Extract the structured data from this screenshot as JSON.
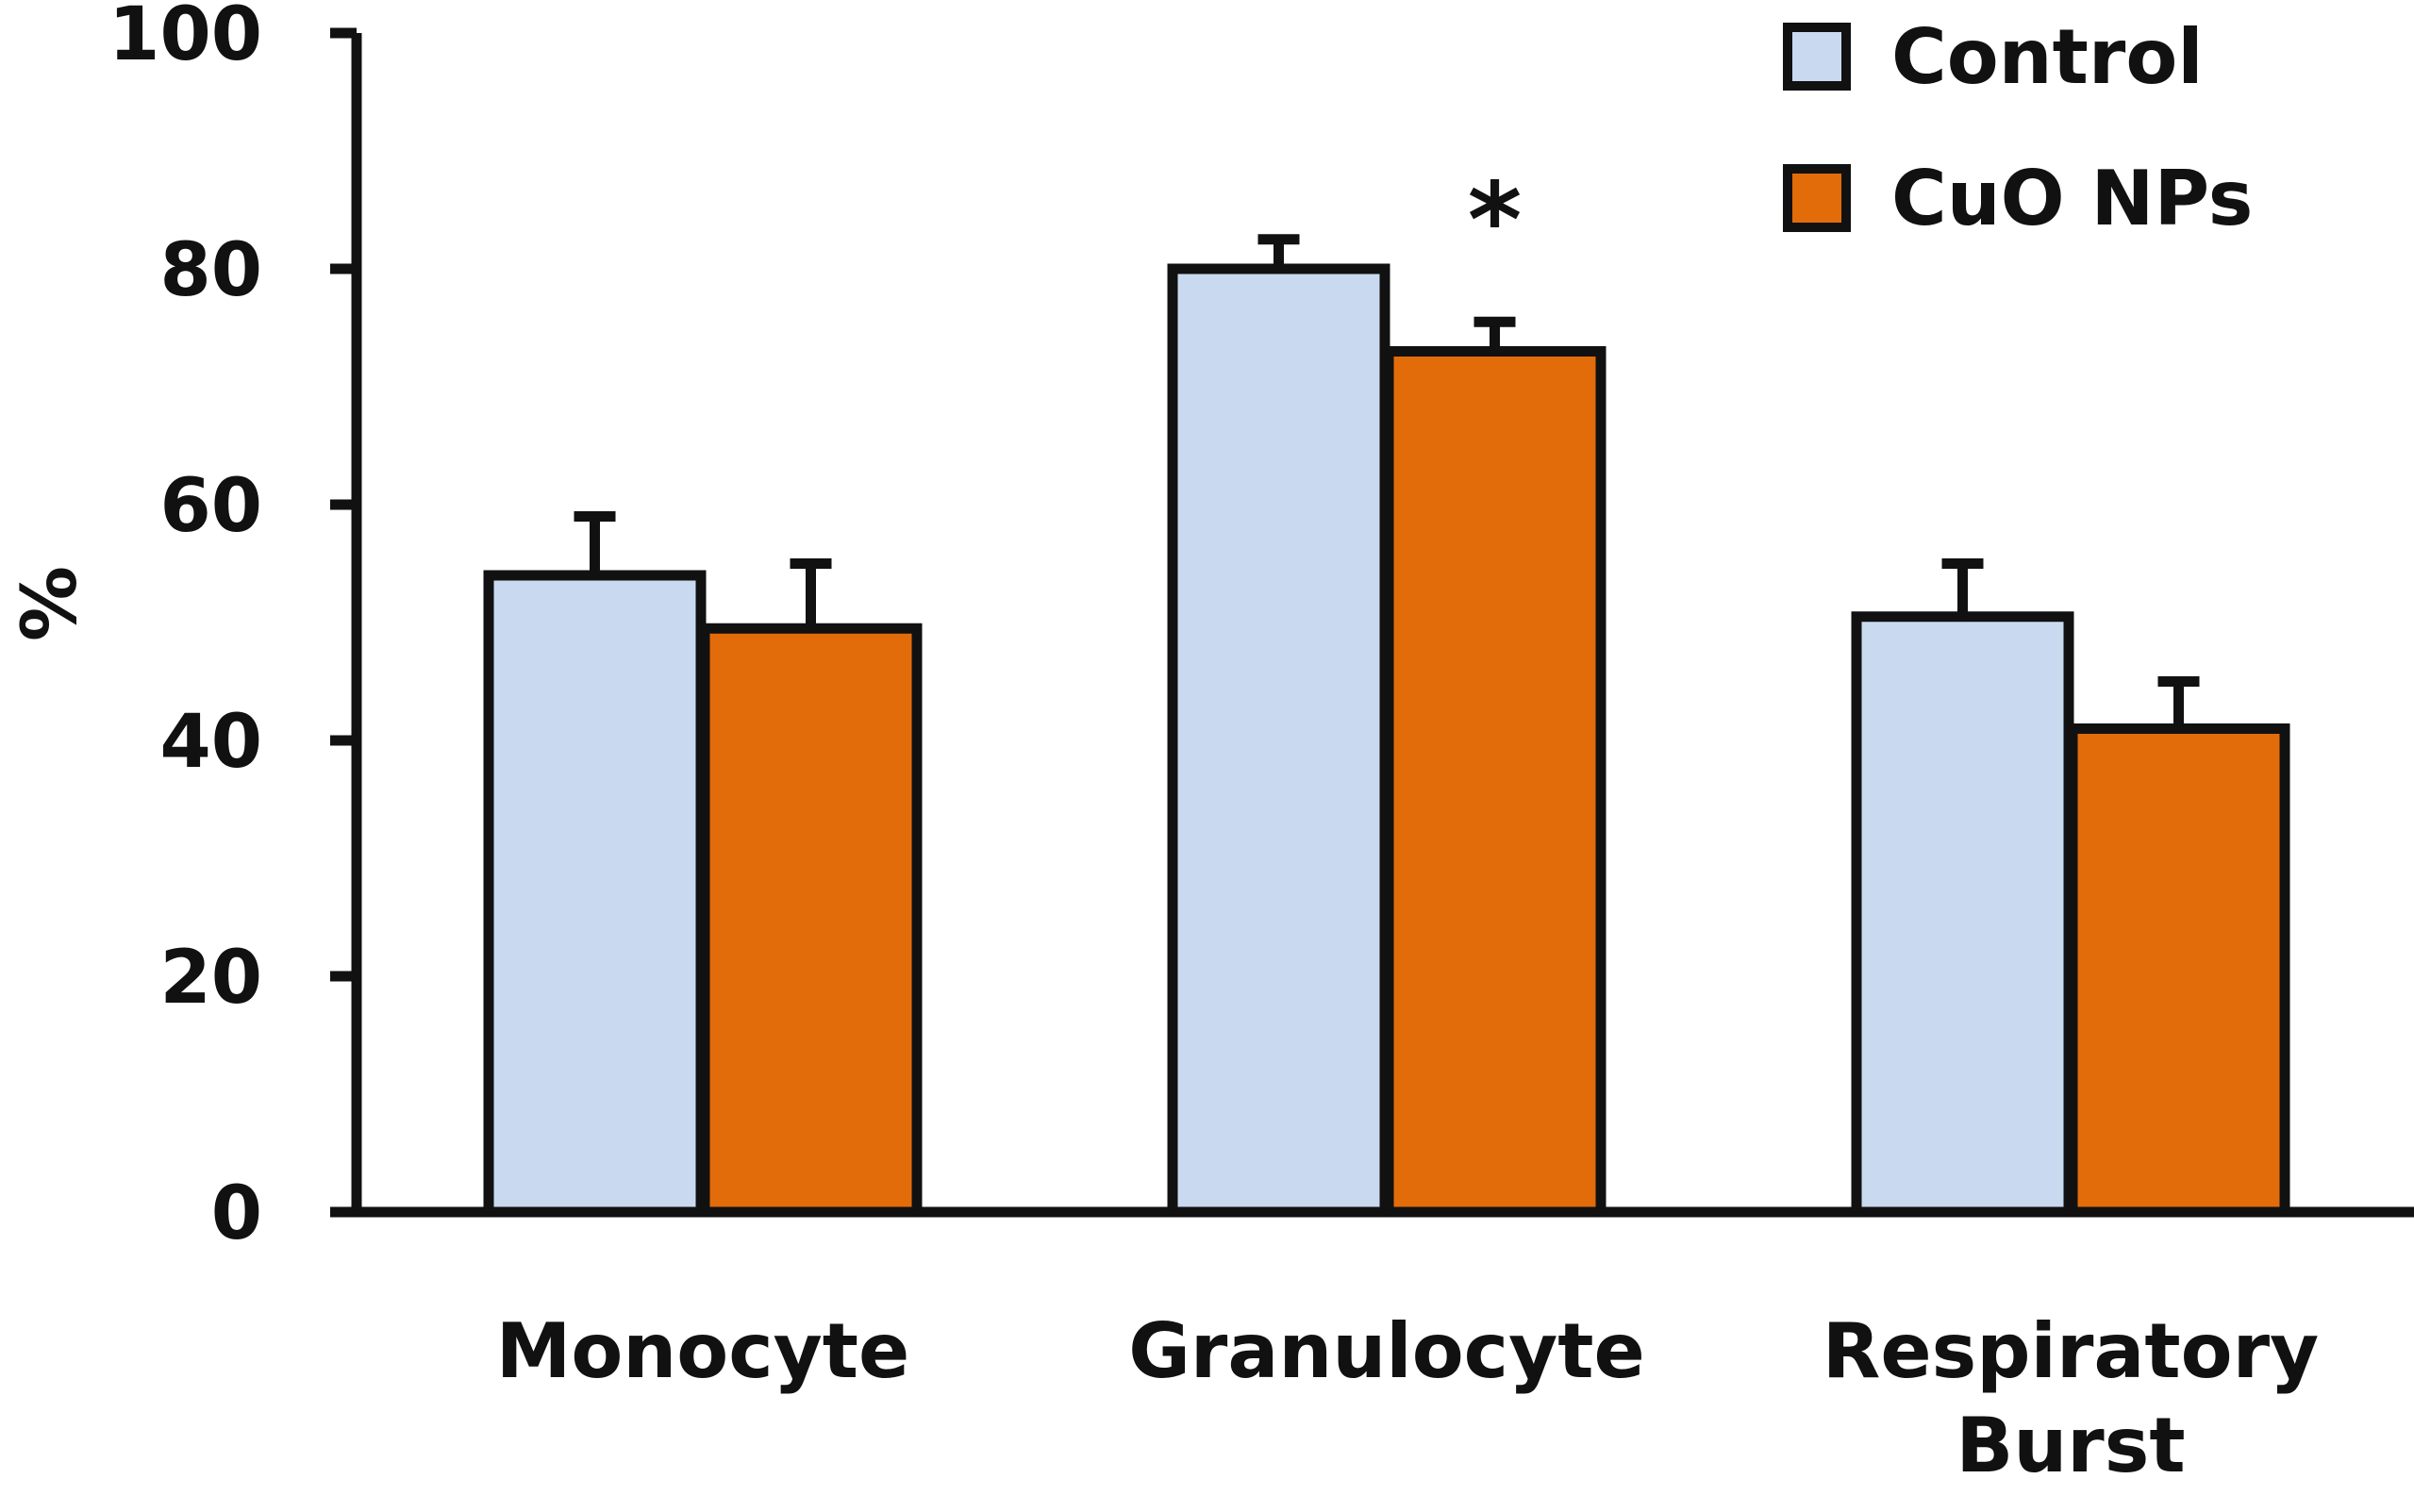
{
  "chart_data": {
    "type": "bar",
    "title": "",
    "xlabel": "",
    "ylabel": "%",
    "ylim": [
      0,
      100
    ],
    "yticks": [
      0,
      20,
      40,
      60,
      80,
      100
    ],
    "grid": false,
    "legend_position": "top-right",
    "categories": [
      [
        "Monocyte"
      ],
      [
        "Granulocyte"
      ],
      [
        "Respiratory",
        "Burst"
      ]
    ],
    "series": [
      {
        "name": "Control",
        "color": "#c9daf0",
        "values": [
          54,
          80,
          50.5
        ],
        "errors": [
          5,
          2.5,
          4.5
        ]
      },
      {
        "name": "CuO NPs",
        "color": "#e36c0a",
        "values": [
          49.5,
          73,
          41
        ],
        "errors": [
          5.5,
          2.5,
          4
        ]
      }
    ],
    "annotations": [
      {
        "text": "*",
        "category_index": 1,
        "series_index": 1
      }
    ]
  }
}
